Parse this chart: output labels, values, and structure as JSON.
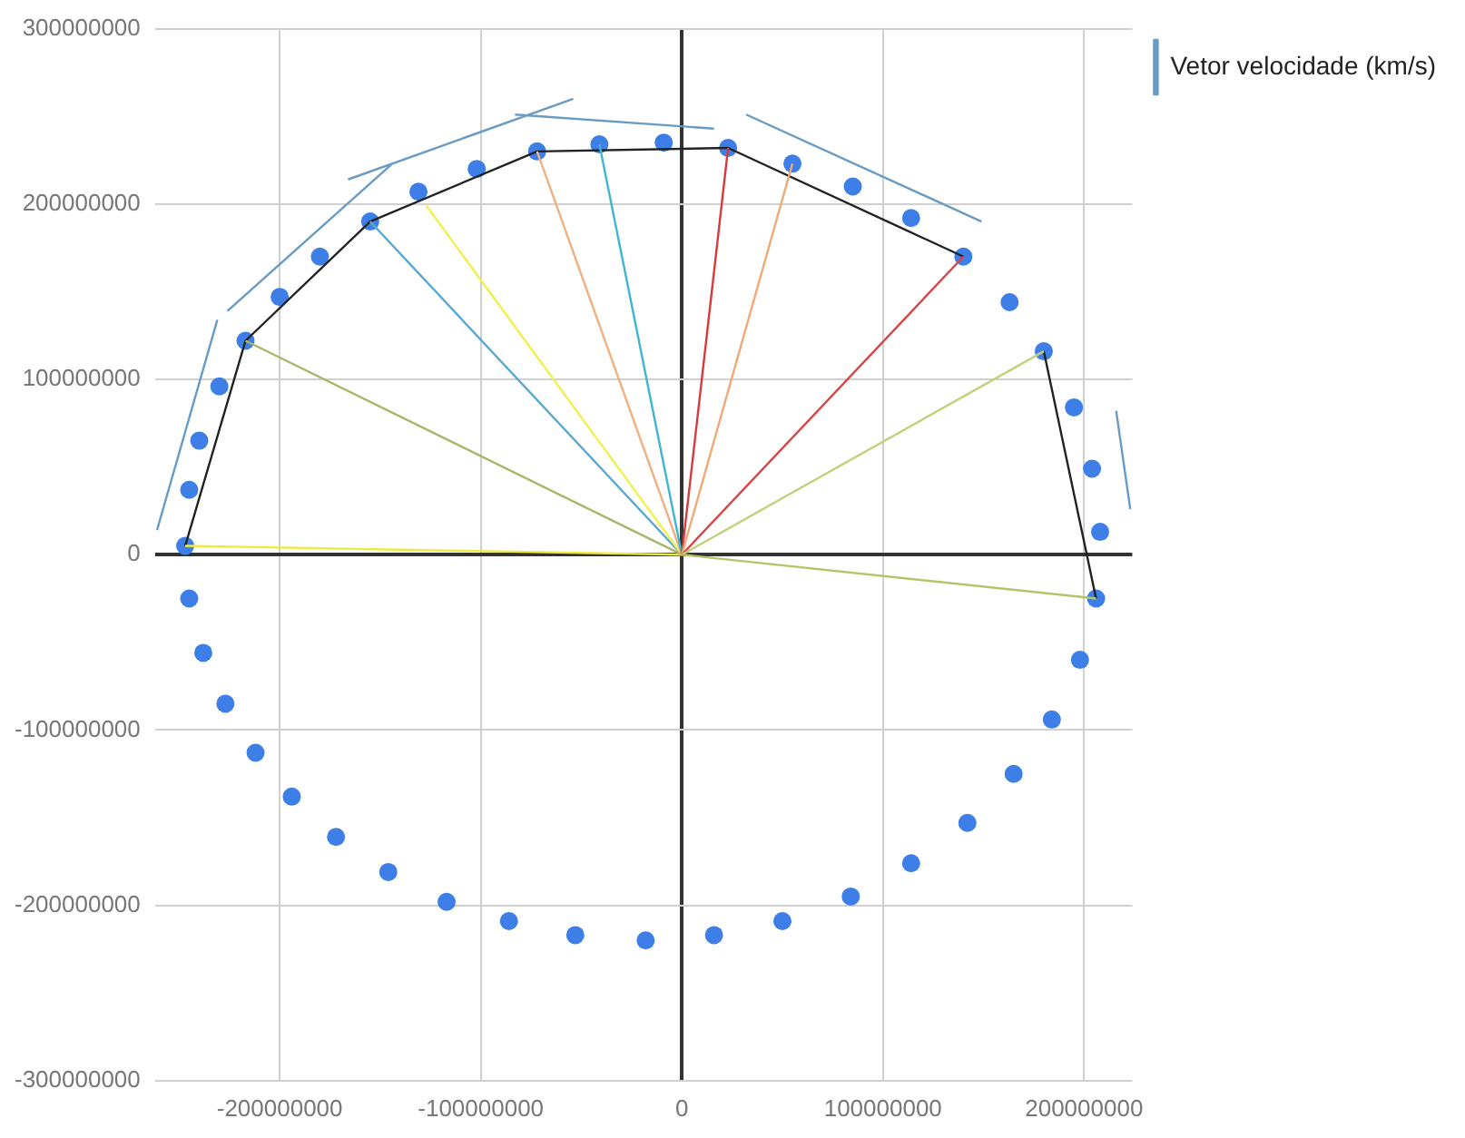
{
  "chart_data": {
    "type": "scatter",
    "grid": true,
    "legend": "top right",
    "xlim": [
      -262000000,
      224000000
    ],
    "ylim": [
      -300000000,
      300000000
    ],
    "xticks": [
      -200000000,
      -100000000,
      0,
      100000000,
      200000000
    ],
    "yticks": [
      -300000000,
      -200000000,
      -100000000,
      0,
      100000000,
      200000000,
      300000000
    ],
    "series": [
      {
        "type": "scatter",
        "marker": "circle",
        "color": "#3d7fe6",
        "x": [
          -247000000,
          -245000000,
          -240000000,
          -230000000,
          -217000000,
          -200000000,
          -180000000,
          -155000000,
          -131000000,
          -102000000,
          -72000000,
          -41000000,
          -9000000,
          23000000,
          55000000,
          85000000,
          114000000,
          140000000,
          163000000,
          180000000,
          195000000,
          204000000,
          208000000,
          206000000,
          198000000,
          184000000,
          165000000,
          142000000,
          114000000,
          84000000,
          50000000,
          16000000,
          -18000000,
          -53000000,
          -86000000,
          -117000000,
          -146000000,
          -172000000,
          -194000000,
          -212000000,
          -227000000,
          -238000000,
          -245000000
        ],
        "values": [
          5000000,
          37000000,
          65000000,
          96000000,
          122000000,
          147000000,
          170000000,
          190000000,
          207000000,
          220000000,
          230000000,
          234000000,
          235000000,
          232000000,
          223000000,
          210000000,
          192000000,
          170000000,
          144000000,
          116000000,
          84000000,
          49000000,
          13000000,
          -25000000,
          -60000000,
          -94000000,
          -125000000,
          -153000000,
          -176000000,
          -195000000,
          -209000000,
          -217000000,
          -220000000,
          -217000000,
          -209000000,
          -198000000,
          -181000000,
          -161000000,
          -138000000,
          -113000000,
          -85000000,
          -56000000,
          -25000000
        ]
      },
      {
        "type": "line",
        "marker": "none",
        "color": "#b5c46a",
        "x": [
          0,
          206000000
        ],
        "values": [
          0,
          -25000000
        ]
      },
      {
        "type": "line",
        "marker": "none",
        "color": "#bfd27a",
        "x": [
          0,
          180000000
        ],
        "values": [
          0,
          116000000
        ]
      },
      {
        "type": "line",
        "marker": "none",
        "color": "#d64545",
        "x": [
          0,
          140000000
        ],
        "values": [
          0,
          170000000
        ]
      },
      {
        "type": "line",
        "marker": "none",
        "color": "#f0a878",
        "x": [
          0,
          55000000
        ],
        "values": [
          0,
          223000000
        ]
      },
      {
        "type": "line",
        "marker": "none",
        "color": "#d63a3a",
        "x": [
          0,
          23000000
        ],
        "values": [
          0,
          232000000
        ]
      },
      {
        "type": "line",
        "marker": "none",
        "color": "#3fb6d0",
        "x": [
          0,
          -41000000
        ],
        "values": [
          0,
          234000000
        ]
      },
      {
        "type": "line",
        "marker": "none",
        "color": "#f0b080",
        "x": [
          0,
          -72000000
        ],
        "values": [
          0,
          230000000
        ]
      },
      {
        "type": "line",
        "marker": "none",
        "color": "#f2ef50",
        "x": [
          0,
          -127000000
        ],
        "values": [
          0,
          199000000
        ]
      },
      {
        "type": "line",
        "marker": "none",
        "color": "#58a8d0",
        "x": [
          0,
          -155000000
        ],
        "values": [
          0,
          190000000
        ]
      },
      {
        "type": "line",
        "marker": "none",
        "color": "#a9b66a",
        "x": [
          0,
          -217000000
        ],
        "values": [
          0,
          122000000
        ]
      },
      {
        "type": "line",
        "marker": "none",
        "color": "#eeea3c",
        "x": [
          0,
          -247000000
        ],
        "values": [
          0,
          5000000
        ]
      },
      {
        "type": "line",
        "marker": "none",
        "color": "#222222",
        "x": [
          206000000,
          180000000,
          null,
          140000000,
          23000000,
          -72000000,
          -155000000,
          -217000000,
          -247000000
        ],
        "values": [
          -25000000,
          116000000,
          null,
          170000000,
          232000000,
          230000000,
          190000000,
          122000000,
          5000000
        ]
      },
      {
        "type": "line",
        "marker": "none",
        "name": "Vetor velocidade (km/s)",
        "color": "#6a9bc3",
        "x": [
          223000000,
          216000000,
          null,
          149000000,
          32000000,
          null,
          16000000,
          -83000000,
          null,
          -54000000,
          -166000000,
          null,
          -144000000,
          -226000000,
          null,
          -231000000,
          -261000000
        ],
        "values": [
          26000000,
          82000000,
          null,
          190000000,
          251000000,
          null,
          243000000,
          251000000,
          null,
          260000000,
          214000000,
          null,
          223000000,
          139000000,
          null,
          134000000,
          14000000
        ]
      }
    ]
  }
}
